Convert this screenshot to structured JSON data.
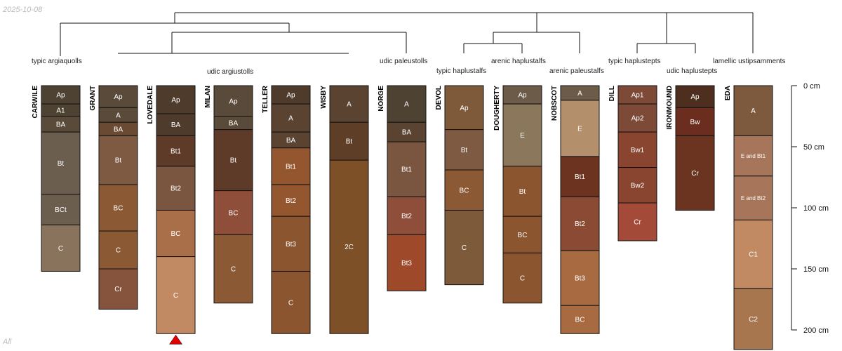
{
  "header": {
    "date": "2025-10-08"
  },
  "footer": {
    "label": "All"
  },
  "axis": {
    "max_depth_cm": 200,
    "ticks": [
      {
        "depth": 0,
        "label": "0 cm"
      },
      {
        "depth": 50,
        "label": "50 cm"
      },
      {
        "depth": 100,
        "label": "100 cm"
      },
      {
        "depth": 150,
        "label": "150 cm"
      },
      {
        "depth": 200,
        "label": "200 cm"
      }
    ]
  },
  "taxa": [
    {
      "key": "t1",
      "label": "typic argiaquolls"
    },
    {
      "key": "t2",
      "label": "udic argiustolls"
    },
    {
      "key": "t3",
      "label": "udic paleustolls"
    },
    {
      "key": "t4",
      "label": "typic haplustalfs"
    },
    {
      "key": "t5",
      "label": "arenic haplustalfs"
    },
    {
      "key": "t6",
      "label": "arenic paleustalfs"
    },
    {
      "key": "t7",
      "label": "typic haplustepts"
    },
    {
      "key": "t8",
      "label": "udic haplustepts"
    },
    {
      "key": "t9",
      "label": "lamellic ustipsamments"
    }
  ],
  "profiles": [
    {
      "name": "CARWILE",
      "truncated": false,
      "horizons": [
        {
          "name": "Ap",
          "top": 0,
          "bottom": 15,
          "color": "#4e4233"
        },
        {
          "name": "A1",
          "top": 15,
          "bottom": 25,
          "color": "#4e4233"
        },
        {
          "name": "BA",
          "top": 25,
          "bottom": 38,
          "color": "#5a4a3a"
        },
        {
          "name": "Bt",
          "top": 38,
          "bottom": 89,
          "color": "#6b5e4f"
        },
        {
          "name": "BCt",
          "top": 89,
          "bottom": 114,
          "color": "#6b5e4f"
        },
        {
          "name": "C",
          "top": 114,
          "bottom": 152,
          "color": "#8a735c"
        }
      ]
    },
    {
      "name": "GRANT",
      "truncated": false,
      "horizons": [
        {
          "name": "Ap",
          "top": 0,
          "bottom": 18,
          "color": "#5a4a3a"
        },
        {
          "name": "A",
          "top": 18,
          "bottom": 30,
          "color": "#5a4a3a"
        },
        {
          "name": "BA",
          "top": 30,
          "bottom": 41,
          "color": "#6b4a34"
        },
        {
          "name": "Bt",
          "top": 41,
          "bottom": 81,
          "color": "#7d5a41"
        },
        {
          "name": "BC",
          "top": 81,
          "bottom": 119,
          "color": "#8b5a35"
        },
        {
          "name": "C",
          "top": 119,
          "bottom": 150,
          "color": "#8b5a35"
        },
        {
          "name": "Cr",
          "top": 150,
          "bottom": 183,
          "color": "#86533d"
        }
      ]
    },
    {
      "name": "LOVEDALE",
      "truncated": true,
      "horizons": [
        {
          "name": "Ap",
          "top": 0,
          "bottom": 23,
          "color": "#4e3b2c"
        },
        {
          "name": "BA",
          "top": 23,
          "bottom": 41,
          "color": "#4e3b2c"
        },
        {
          "name": "Bt1",
          "top": 41,
          "bottom": 66,
          "color": "#5e3a28"
        },
        {
          "name": "Bt2",
          "top": 66,
          "bottom": 102,
          "color": "#7a5540"
        },
        {
          "name": "BC",
          "top": 102,
          "bottom": 140,
          "color": "#a86f48"
        },
        {
          "name": "C",
          "top": 140,
          "bottom": 203,
          "color": "#c28a62"
        }
      ]
    },
    {
      "name": "MILAN",
      "truncated": false,
      "horizons": [
        {
          "name": "Ap",
          "top": 0,
          "bottom": 25,
          "color": "#5a4a3a"
        },
        {
          "name": "BA",
          "top": 25,
          "bottom": 36,
          "color": "#5a4a3a"
        },
        {
          "name": "Bt",
          "top": 36,
          "bottom": 86,
          "color": "#5e3a28"
        },
        {
          "name": "BC",
          "top": 86,
          "bottom": 122,
          "color": "#8f4e3a"
        },
        {
          "name": "C",
          "top": 122,
          "bottom": 178,
          "color": "#8b5a35"
        }
      ]
    },
    {
      "name": "TELLER",
      "truncated": false,
      "horizons": [
        {
          "name": "Ap",
          "top": 0,
          "bottom": 15,
          "color": "#4e3b2c"
        },
        {
          "name": "A",
          "top": 15,
          "bottom": 38,
          "color": "#5a4330"
        },
        {
          "name": "BA",
          "top": 38,
          "bottom": 51,
          "color": "#5a4330"
        },
        {
          "name": "Bt1",
          "top": 51,
          "bottom": 81,
          "color": "#93562e"
        },
        {
          "name": "Bt2",
          "top": 81,
          "bottom": 107,
          "color": "#93562e"
        },
        {
          "name": "Bt3",
          "top": 107,
          "bottom": 152,
          "color": "#8b5530"
        },
        {
          "name": "C",
          "top": 152,
          "bottom": 203,
          "color": "#8b5530"
        }
      ]
    },
    {
      "name": "WISBY",
      "truncated": false,
      "horizons": [
        {
          "name": "A",
          "top": 0,
          "bottom": 30,
          "color": "#5a4330"
        },
        {
          "name": "Bt",
          "top": 30,
          "bottom": 61,
          "color": "#5e3e26"
        },
        {
          "name": "2C",
          "top": 61,
          "bottom": 203,
          "color": "#7e5028"
        }
      ]
    },
    {
      "name": "NORGE",
      "truncated": false,
      "horizons": [
        {
          "name": "A",
          "top": 0,
          "bottom": 30,
          "color": "#4e4233"
        },
        {
          "name": "BA",
          "top": 30,
          "bottom": 46,
          "color": "#5a4330"
        },
        {
          "name": "Bt1",
          "top": 46,
          "bottom": 91,
          "color": "#7a5540"
        },
        {
          "name": "Bt2",
          "top": 91,
          "bottom": 122,
          "color": "#8f4e3a"
        },
        {
          "name": "Bt3",
          "top": 122,
          "bottom": 168,
          "color": "#9e4a2a"
        }
      ]
    },
    {
      "name": "DEVOL",
      "truncated": false,
      "horizons": [
        {
          "name": "Ap",
          "top": 0,
          "bottom": 36,
          "color": "#7e5a3a"
        },
        {
          "name": "Bt",
          "top": 36,
          "bottom": 69,
          "color": "#7d5a41"
        },
        {
          "name": "BC",
          "top": 69,
          "bottom": 102,
          "color": "#8b5a35"
        },
        {
          "name": "C",
          "top": 102,
          "bottom": 163,
          "color": "#7d5a3a"
        }
      ]
    },
    {
      "name": "DOUGHERTY",
      "truncated": false,
      "horizons": [
        {
          "name": "Ap",
          "top": 0,
          "bottom": 15,
          "color": "#6b5b48"
        },
        {
          "name": "E",
          "top": 15,
          "bottom": 66,
          "color": "#8b775c"
        },
        {
          "name": "Bt",
          "top": 66,
          "bottom": 107,
          "color": "#8b5530"
        },
        {
          "name": "BC",
          "top": 107,
          "bottom": 137,
          "color": "#8b5530"
        },
        {
          "name": "C",
          "top": 137,
          "bottom": 178,
          "color": "#8b5530"
        }
      ]
    },
    {
      "name": "NOBSCOT",
      "truncated": false,
      "horizons": [
        {
          "name": "A",
          "top": 0,
          "bottom": 12,
          "color": "#6b5b48"
        },
        {
          "name": "E",
          "top": 12,
          "bottom": 58,
          "color": "#b48f6c"
        },
        {
          "name": "Bt1",
          "top": 58,
          "bottom": 91,
          "color": "#6b3320"
        },
        {
          "name": "Bt2",
          "top": 91,
          "bottom": 135,
          "color": "#8a4a34"
        },
        {
          "name": "Bt3",
          "top": 135,
          "bottom": 180,
          "color": "#a86a40"
        },
        {
          "name": "BC",
          "top": 180,
          "bottom": 203,
          "color": "#a86a40"
        }
      ]
    },
    {
      "name": "DILL",
      "truncated": false,
      "horizons": [
        {
          "name": "Ap1",
          "top": 0,
          "bottom": 15,
          "color": "#7e4a38"
        },
        {
          "name": "Ap2",
          "top": 15,
          "bottom": 38,
          "color": "#7e4a38"
        },
        {
          "name": "Bw1",
          "top": 38,
          "bottom": 67,
          "color": "#8a4530"
        },
        {
          "name": "Bw2",
          "top": 67,
          "bottom": 96,
          "color": "#8a4530"
        },
        {
          "name": "Cr",
          "top": 96,
          "bottom": 127,
          "color": "#a34a38"
        }
      ]
    },
    {
      "name": "IRONMOUND",
      "truncated": false,
      "horizons": [
        {
          "name": "Ap",
          "top": 0,
          "bottom": 18,
          "color": "#4e2e1f"
        },
        {
          "name": "Bw",
          "top": 18,
          "bottom": 41,
          "color": "#6b2e1e"
        },
        {
          "name": "Cr",
          "top": 41,
          "bottom": 102,
          "color": "#6b3420"
        }
      ]
    },
    {
      "name": "EDA",
      "truncated": false,
      "horizons": [
        {
          "name": "A",
          "top": 0,
          "bottom": 41,
          "color": "#7d5a3e"
        },
        {
          "name": "E and Bt1",
          "top": 41,
          "bottom": 74,
          "color": "#a7765a"
        },
        {
          "name": "E and Bt2",
          "top": 74,
          "bottom": 110,
          "color": "#a7765a"
        },
        {
          "name": "C1",
          "top": 110,
          "bottom": 166,
          "color": "#c28a62"
        },
        {
          "name": "C2",
          "top": 166,
          "bottom": 216,
          "color": "#a7764e"
        }
      ]
    }
  ]
}
